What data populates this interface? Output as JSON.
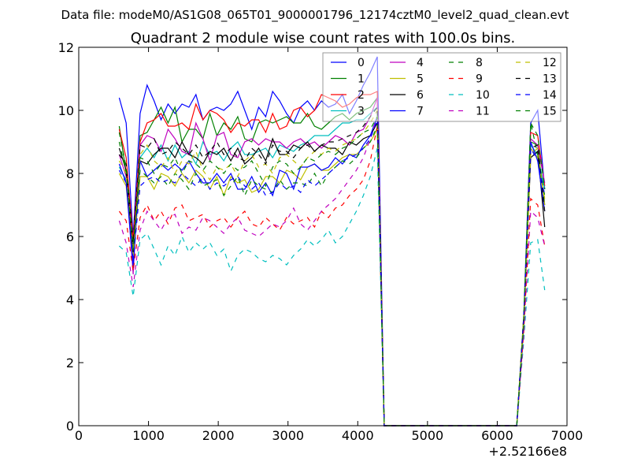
{
  "chart_data": {
    "type": "line",
    "suptitle": "Data file: modeM0/AS1G08_065T01_9000001796_12174cztM0_level2_quad_clean.evt",
    "title": "Quadrant 2 module wise count rates with 100.0s bins.",
    "xlabel": "",
    "ylabel": "",
    "xlim": [
      0,
      7000
    ],
    "ylim": [
      0,
      12
    ],
    "x_offset_label": "+2.52166e8",
    "xticks": [
      0,
      1000,
      2000,
      3000,
      4000,
      5000,
      6000,
      7000
    ],
    "xtick_labels": [
      "0",
      "1000",
      "2000",
      "3000",
      "4000",
      "5000",
      "6000",
      "7000"
    ],
    "yticks": [
      0,
      2,
      4,
      6,
      8,
      10,
      12
    ],
    "ytick_labels": [
      "0",
      "2",
      "4",
      "6",
      "8",
      "10",
      "12"
    ],
    "grid": false,
    "legend": {
      "placement": "top-right",
      "columns": 4
    },
    "x": [
      580,
      680,
      780,
      880,
      980,
      1080,
      1180,
      1280,
      1380,
      1480,
      1580,
      1680,
      1780,
      1880,
      1980,
      2080,
      2180,
      2280,
      2380,
      2480,
      2580,
      2680,
      2780,
      2880,
      2980,
      3080,
      3180,
      3280,
      3380,
      3480,
      3580,
      3680,
      3780,
      3880,
      3980,
      4080,
      4180,
      4280,
      4380,
      6280,
      6380,
      6480,
      6580,
      6680
    ],
    "series": [
      {
        "name": "0",
        "color": "#0000ff",
        "style": "solid",
        "values": [
          10.4,
          9.6,
          6.0,
          9.9,
          10.8,
          10.3,
          9.7,
          10.2,
          9.9,
          10.2,
          10.1,
          10.5,
          9.7,
          10.0,
          10.1,
          10.0,
          10.2,
          10.6,
          10.0,
          9.4,
          10.1,
          9.8,
          10.6,
          10.3,
          9.9,
          9.6,
          10.1,
          10.3,
          10.0,
          10.3,
          10.1,
          10.2,
          10.5,
          9.9,
          10.3,
          10.8,
          11.2,
          11.7,
          0,
          0,
          3.5,
          9.6,
          10.0,
          7.5
        ]
      },
      {
        "name": "1",
        "color": "#008000",
        "style": "solid",
        "values": [
          9.5,
          8.0,
          5.5,
          9.2,
          9.3,
          9.7,
          10.1,
          9.6,
          10.1,
          9.0,
          9.4,
          9.4,
          9.1,
          9.9,
          9.2,
          9.6,
          9.4,
          9.8,
          9.1,
          9.0,
          9.6,
          9.7,
          9.6,
          9.7,
          9.8,
          9.6,
          9.6,
          9.9,
          9.5,
          9.4,
          9.6,
          9.8,
          9.9,
          9.7,
          9.9,
          10.0,
          10.1,
          10.4,
          0,
          0,
          3.2,
          9.0,
          8.9,
          7.0
        ]
      },
      {
        "name": "2",
        "color": "#ff0000",
        "style": "solid",
        "values": [
          9.4,
          8.5,
          5.9,
          9.0,
          9.6,
          9.7,
          9.9,
          9.5,
          9.5,
          9.6,
          9.4,
          10.2,
          9.7,
          10.0,
          9.9,
          9.7,
          9.3,
          9.6,
          9.5,
          9.7,
          9.7,
          9.3,
          9.9,
          9.4,
          9.5,
          10.0,
          10.1,
          9.8,
          10.0,
          10.5,
          10.4,
          10.3,
          10.1,
          10.2,
          10.4,
          10.5,
          10.5,
          10.6,
          0,
          0,
          3.3,
          9.3,
          9.2,
          7.6
        ]
      },
      {
        "name": "3",
        "color": "#00bfbf",
        "style": "solid",
        "values": [
          8.2,
          7.8,
          5.2,
          8.5,
          8.8,
          8.5,
          8.9,
          8.4,
          8.9,
          8.5,
          8.7,
          8.3,
          9.0,
          8.6,
          8.7,
          8.4,
          8.8,
          9.0,
          8.6,
          8.6,
          8.7,
          8.8,
          8.5,
          8.9,
          8.8,
          8.7,
          8.9,
          9.0,
          9.2,
          9.2,
          9.2,
          9.4,
          9.6,
          9.6,
          9.7,
          9.7,
          9.9,
          10.1,
          0,
          0,
          3.4,
          8.9,
          8.6,
          7.5
        ]
      },
      {
        "name": "4",
        "color": "#bf00bf",
        "style": "solid",
        "values": [
          8.6,
          7.9,
          4.8,
          8.9,
          9.2,
          9.1,
          8.7,
          9.4,
          9.1,
          8.7,
          8.6,
          9.6,
          9.1,
          8.4,
          9.2,
          9.3,
          8.6,
          8.5,
          9.0,
          9.1,
          8.9,
          9.1,
          9.0,
          9.0,
          8.8,
          9.0,
          9.1,
          8.9,
          9.0,
          8.8,
          9.0,
          9.2,
          9.1,
          8.9,
          9.3,
          9.4,
          9.8,
          10.4,
          0,
          0,
          3.4,
          9.1,
          8.9,
          7.7
        ]
      },
      {
        "name": "5",
        "color": "#bfbf00",
        "style": "solid",
        "values": [
          8.0,
          7.6,
          5.3,
          7.9,
          7.9,
          7.5,
          8.0,
          7.9,
          7.6,
          8.0,
          7.7,
          8.1,
          7.9,
          7.5,
          7.9,
          7.3,
          7.9,
          7.7,
          7.8,
          7.4,
          7.5,
          7.9,
          7.9,
          7.7,
          8.1,
          8.0,
          7.8,
          8.2,
          8.3,
          8.1,
          8.1,
          8.3,
          8.5,
          8.6,
          8.6,
          8.8,
          9.0,
          9.4,
          0,
          0,
          3.5,
          8.8,
          8.5,
          7.2
        ]
      },
      {
        "name": "6",
        "color": "#000000",
        "style": "solid",
        "values": [
          8.8,
          8.1,
          5.5,
          8.4,
          8.3,
          8.6,
          8.8,
          8.8,
          8.5,
          9.0,
          8.6,
          8.5,
          8.3,
          8.7,
          8.6,
          8.8,
          8.4,
          8.8,
          8.3,
          8.5,
          8.8,
          8.4,
          9.1,
          8.6,
          8.6,
          8.9,
          8.8,
          9.0,
          8.7,
          8.9,
          8.8,
          8.8,
          8.6,
          9.0,
          8.9,
          9.1,
          9.2,
          9.6,
          0,
          0,
          3.2,
          8.5,
          8.7,
          6.3
        ]
      },
      {
        "name": "7",
        "color": "#0000ff",
        "style": "solid",
        "values": [
          8.3,
          7.7,
          5.0,
          8.4,
          7.9,
          8.1,
          8.3,
          8.1,
          8.3,
          8.1,
          8.4,
          8.0,
          7.7,
          7.7,
          8.0,
          7.7,
          8.0,
          7.5,
          7.5,
          7.9,
          7.4,
          7.7,
          7.3,
          8.1,
          8.0,
          7.5,
          8.2,
          8.2,
          8.3,
          8.1,
          8.2,
          8.5,
          8.3,
          8.6,
          8.5,
          8.9,
          9.2,
          9.8,
          0,
          0,
          3.3,
          9.0,
          8.4,
          6.8
        ]
      },
      {
        "name": "8",
        "color": "#008000",
        "style": "dashed",
        "values": [
          9.0,
          8.0,
          5.5,
          8.1,
          7.9,
          7.7,
          7.9,
          7.6,
          8.0,
          7.8,
          7.5,
          8.0,
          7.6,
          7.7,
          7.8,
          7.3,
          7.6,
          7.9,
          7.3,
          7.8,
          7.6,
          7.5,
          7.4,
          7.8,
          7.5,
          7.7,
          7.7,
          7.6,
          8.0,
          7.6,
          8.0,
          8.2,
          8.4,
          8.3,
          8.5,
          8.8,
          9.0,
          9.5,
          0,
          0,
          3.2,
          9.6,
          8.6,
          7.3
        ]
      },
      {
        "name": "9",
        "color": "#ff0000",
        "style": "dashed",
        "values": [
          6.8,
          6.5,
          4.9,
          6.6,
          7.0,
          6.5,
          6.8,
          6.4,
          6.9,
          7.0,
          6.5,
          6.6,
          6.7,
          6.3,
          6.5,
          6.6,
          6.3,
          6.6,
          6.8,
          6.4,
          6.3,
          6.6,
          6.4,
          6.2,
          6.6,
          6.4,
          6.5,
          6.6,
          6.3,
          6.8,
          6.6,
          6.9,
          7.0,
          7.3,
          7.5,
          7.8,
          8.4,
          9.5,
          0,
          0,
          3.0,
          7.2,
          7.0,
          5.7
        ]
      },
      {
        "name": "10",
        "color": "#00bfbf",
        "style": "dashed",
        "values": [
          5.7,
          5.5,
          4.1,
          5.9,
          6.1,
          5.6,
          5.1,
          5.7,
          5.4,
          6.0,
          5.5,
          5.8,
          5.6,
          5.8,
          5.4,
          5.6,
          4.9,
          5.4,
          5.6,
          5.5,
          5.3,
          5.2,
          5.4,
          5.3,
          5.1,
          5.4,
          5.6,
          5.9,
          5.7,
          5.9,
          6.2,
          5.8,
          6.0,
          6.4,
          6.8,
          7.3,
          7.9,
          8.8,
          0,
          0,
          2.7,
          5.8,
          5.9,
          4.3
        ]
      },
      {
        "name": "11",
        "color": "#bf00bf",
        "style": "dashed",
        "values": [
          6.5,
          5.8,
          4.4,
          6.2,
          6.8,
          6.5,
          6.2,
          6.6,
          6.7,
          6.1,
          6.3,
          6.2,
          6.6,
          6.5,
          6.3,
          6.1,
          6.4,
          6.6,
          6.2,
          6.1,
          6.0,
          6.2,
          6.4,
          6.3,
          6.5,
          6.9,
          6.4,
          6.2,
          6.5,
          6.8,
          7.0,
          7.2,
          7.5,
          7.8,
          8.1,
          8.5,
          9.1,
          9.8,
          0,
          0,
          2.9,
          6.8,
          6.6,
          5.7
        ]
      },
      {
        "name": "12",
        "color": "#bfbf00",
        "style": "dashed",
        "values": [
          8.4,
          8.0,
          5.4,
          8.6,
          8.9,
          8.4,
          8.2,
          8.5,
          8.0,
          8.4,
          8.3,
          8.7,
          8.1,
          7.8,
          8.2,
          8.1,
          8.3,
          7.9,
          8.4,
          8.6,
          8.2,
          8.3,
          8.0,
          8.5,
          8.6,
          8.4,
          8.2,
          8.5,
          8.7,
          8.6,
          8.8,
          8.7,
          8.9,
          9.0,
          9.1,
          9.3,
          9.6,
          10.0,
          0,
          0,
          3.3,
          8.6,
          8.8,
          7.0
        ]
      },
      {
        "name": "13",
        "color": "#000000",
        "style": "dashed",
        "values": [
          8.6,
          8.3,
          5.8,
          8.9,
          8.8,
          9.1,
          8.6,
          8.7,
          9.0,
          8.8,
          8.6,
          8.9,
          8.5,
          8.7,
          9.0,
          8.6,
          8.8,
          8.5,
          8.4,
          8.8,
          8.6,
          8.3,
          8.9,
          8.7,
          8.7,
          8.5,
          8.8,
          8.9,
          8.7,
          8.9,
          9.0,
          9.0,
          9.1,
          9.2,
          9.3,
          9.5,
          9.8,
          10.1,
          0,
          0,
          3.5,
          8.8,
          8.9,
          6.8
        ]
      },
      {
        "name": "14",
        "color": "#0000ff",
        "style": "dashed",
        "values": [
          8.1,
          7.7,
          5.2,
          7.6,
          7.8,
          7.9,
          7.7,
          7.8,
          7.7,
          8.0,
          7.8,
          7.6,
          7.9,
          7.5,
          7.7,
          7.6,
          7.8,
          7.9,
          7.6,
          7.5,
          7.7,
          7.3,
          7.4,
          7.7,
          7.5,
          7.6,
          7.4,
          7.8,
          7.6,
          7.8,
          8.0,
          8.2,
          8.4,
          8.5,
          8.6,
          8.8,
          9.1,
          9.7,
          0,
          0,
          3.4,
          8.8,
          8.4,
          7.3
        ]
      },
      {
        "name": "15",
        "color": "#008000",
        "style": "dashed",
        "values": [
          9.3,
          8.2,
          5.6,
          8.5,
          8.4,
          8.0,
          8.3,
          8.2,
          8.5,
          8.0,
          8.4,
          8.3,
          8.1,
          8.4,
          8.2,
          8.0,
          8.3,
          8.1,
          8.2,
          8.4,
          8.0,
          7.6,
          8.2,
          8.4,
          8.3,
          8.0,
          8.2,
          8.5,
          8.4,
          8.6,
          8.7,
          8.6,
          8.8,
          8.9,
          9.1,
          9.3,
          9.4,
          9.8,
          0,
          0,
          3.3,
          9.6,
          9.2,
          7.5
        ]
      }
    ]
  }
}
